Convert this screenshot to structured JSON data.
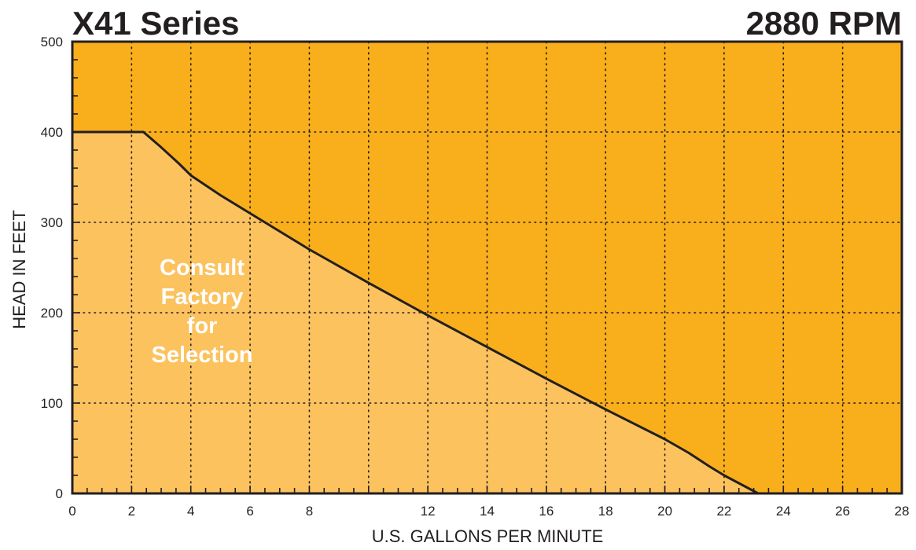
{
  "chart_data": {
    "type": "area",
    "title": "X41 Series",
    "subtitle": "2880 RPM",
    "xlabel": "U.S. GALLONS PER MINUTE",
    "ylabel": "HEAD IN FEET",
    "xlim": [
      0,
      28
    ],
    "ylim": [
      0,
      500
    ],
    "x_ticks": [
      0,
      2,
      4,
      6,
      8,
      12,
      14,
      16,
      18,
      20,
      22,
      24,
      26,
      28
    ],
    "y_ticks": [
      0,
      100,
      200,
      300,
      400,
      500
    ],
    "grid": true,
    "series": [
      {
        "x": [
          0,
          2.4,
          3.0,
          3.6,
          4.0,
          5.0,
          6.0,
          7.0,
          8.0,
          10.0,
          12.0,
          14.0,
          16.0,
          18.0,
          20.0,
          20.8,
          21.5,
          22.0,
          23.15
        ],
        "y": [
          400,
          400,
          383,
          365,
          352,
          330,
          310,
          290,
          270,
          233,
          197,
          162,
          127,
          93,
          60,
          45,
          30,
          20,
          0
        ]
      }
    ],
    "annotations": [
      {
        "lines": [
          "Consult",
          "Factory",
          "for",
          "Selection"
        ]
      }
    ],
    "colors": {
      "background_area": "#f9ae1b",
      "curve_area": "#fcc25e",
      "curve_line": "#231f20",
      "grid": "#231f20",
      "annotation_text": "#ffffff"
    }
  }
}
